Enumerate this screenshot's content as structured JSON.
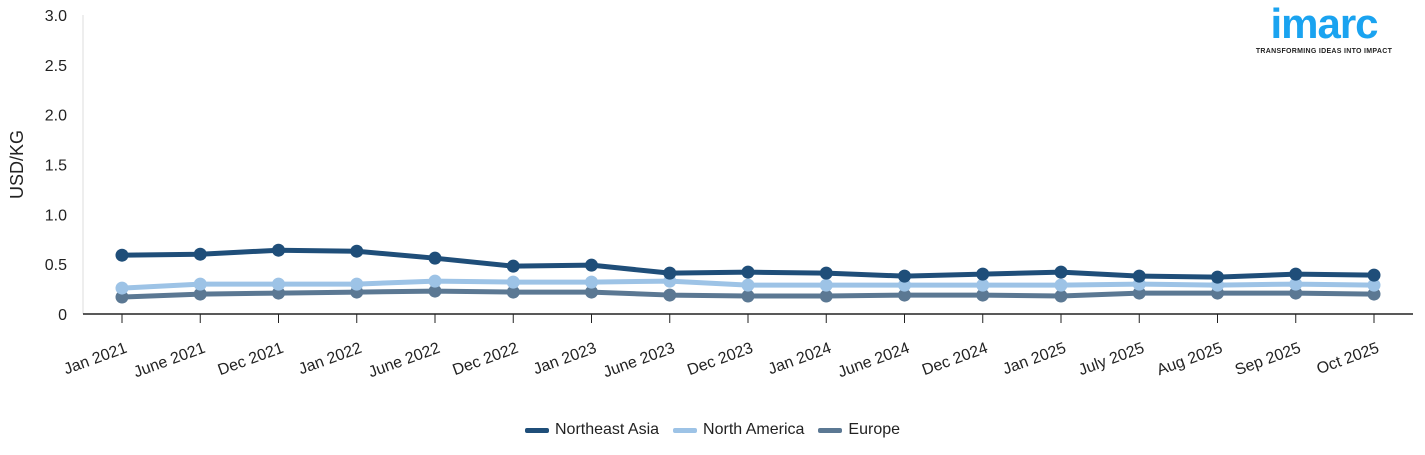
{
  "chart_data": {
    "type": "line",
    "ylabel": "USD/KG",
    "xlabel": "",
    "ylim": [
      0,
      3.0
    ],
    "yticks": [
      "0",
      "0.5",
      "1.0",
      "1.5",
      "2.0",
      "2.5",
      "3.0"
    ],
    "grid": false,
    "legend_position": "bottom",
    "categories": [
      "Jan 2021",
      "June 2021",
      "Dec 2021",
      "Jan 2022",
      "June 2022",
      "Dec 2022",
      "Jan 2023",
      "June 2023",
      "Dec 2023",
      "Jan 2024",
      "June 2024",
      "Dec 2024",
      "Jan 2025",
      "July 2025",
      "Aug 2025",
      "Sep 2025",
      "Oct 2025"
    ],
    "series": [
      {
        "name": "Northeast Asia",
        "color": "#1f4e79",
        "values": [
          0.59,
          0.6,
          0.64,
          0.63,
          0.56,
          0.48,
          0.49,
          0.41,
          0.42,
          0.41,
          0.38,
          0.4,
          0.42,
          0.38,
          0.37,
          0.4,
          0.39
        ]
      },
      {
        "name": "North America",
        "color": "#9dc3e6",
        "values": [
          0.26,
          0.3,
          0.3,
          0.3,
          0.33,
          0.32,
          0.32,
          0.33,
          0.29,
          0.29,
          0.29,
          0.29,
          0.29,
          0.3,
          0.29,
          0.3,
          0.29
        ]
      },
      {
        "name": "Europe",
        "color": "#5b7893",
        "values": [
          0.17,
          0.2,
          0.21,
          0.22,
          0.23,
          0.22,
          0.22,
          0.19,
          0.18,
          0.18,
          0.19,
          0.19,
          0.18,
          0.21,
          0.21,
          0.21,
          0.2
        ]
      }
    ]
  },
  "logo": {
    "word": "imarc",
    "tagline": "TRANSFORMING IDEAS INTO IMPACT",
    "color": "#1aa3f0"
  }
}
